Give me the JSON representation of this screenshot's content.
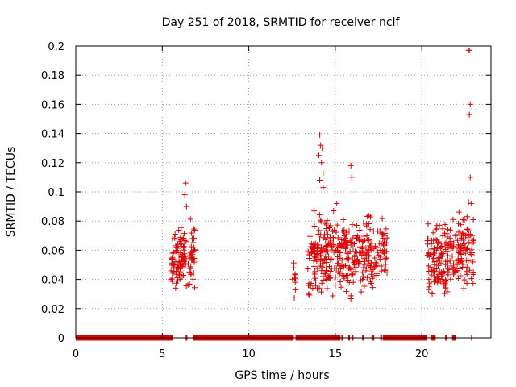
{
  "chart_data": {
    "type": "scatter",
    "title": "Day 251 of 2018, SRMTID for receiver nclf",
    "xlabel": "GPS time / hours",
    "ylabel": "SRMTID / TECUs",
    "xlim": [
      0,
      24
    ],
    "ylim": [
      0,
      0.2
    ],
    "xticks": [
      0,
      5,
      10,
      15,
      20
    ],
    "xtick_labels": [
      "0",
      "5",
      "10",
      "15",
      "20"
    ],
    "yticks": [
      0,
      0.02,
      0.04,
      0.06,
      0.08,
      0.1,
      0.12,
      0.14,
      0.16,
      0.18,
      0.2
    ],
    "ytick_labels": [
      "0",
      "0.02",
      "0.04",
      "0.06",
      "0.08",
      "0.1",
      "0.12",
      "0.14",
      "0.16",
      "0.18",
      "0.2"
    ],
    "grid": true,
    "marker": "+",
    "series": [
      {
        "name": "SRMTID",
        "color": "#e00000",
        "zero_segments": [
          [
            0.0,
            5.6
          ],
          [
            6.35,
            6.45
          ],
          [
            6.8,
            12.6
          ],
          [
            12.7,
            15.3
          ],
          [
            15.35,
            15.45
          ],
          [
            15.75,
            15.85
          ],
          [
            15.95,
            16.05
          ],
          [
            16.55,
            16.65
          ],
          [
            17.1,
            17.25
          ],
          [
            17.6,
            17.7
          ],
          [
            17.75,
            20.3
          ],
          [
            20.55,
            20.8
          ],
          [
            21.35,
            21.45
          ],
          [
            21.75,
            21.95
          ],
          [
            22.85,
            22.9
          ]
        ],
        "clusters": [
          {
            "x0": 5.5,
            "x1": 6.2,
            "ymin": 0.025,
            "ymax": 0.082,
            "n": 70
          },
          {
            "x0": 6.2,
            "x1": 6.9,
            "ymin": 0.022,
            "ymax": 0.09,
            "n": 55
          },
          {
            "x0": 12.5,
            "x1": 12.7,
            "ymin": 0.022,
            "ymax": 0.065,
            "n": 10
          },
          {
            "x0": 13.4,
            "x1": 16.0,
            "ymin": 0.018,
            "ymax": 0.095,
            "n": 230
          },
          {
            "x0": 16.0,
            "x1": 18.0,
            "ymin": 0.025,
            "ymax": 0.09,
            "n": 150
          },
          {
            "x0": 20.3,
            "x1": 21.6,
            "ymin": 0.022,
            "ymax": 0.09,
            "n": 120
          },
          {
            "x0": 21.6,
            "x1": 23.0,
            "ymin": 0.025,
            "ymax": 0.095,
            "n": 110
          }
        ],
        "outliers": [
          [
            6.35,
            0.106
          ],
          [
            6.3,
            0.098
          ],
          [
            6.4,
            0.09
          ],
          [
            14.1,
            0.139
          ],
          [
            14.15,
            0.132
          ],
          [
            14.25,
            0.13
          ],
          [
            14.05,
            0.125
          ],
          [
            14.2,
            0.12
          ],
          [
            14.3,
            0.113
          ],
          [
            14.1,
            0.108
          ],
          [
            14.3,
            0.103
          ],
          [
            15.9,
            0.118
          ],
          [
            15.95,
            0.11
          ],
          [
            22.7,
            0.197
          ],
          [
            22.75,
            0.197
          ],
          [
            22.8,
            0.16
          ],
          [
            22.75,
            0.153
          ],
          [
            22.8,
            0.11
          ],
          [
            22.7,
            0.093
          ],
          [
            22.85,
            0.092
          ]
        ]
      }
    ]
  }
}
